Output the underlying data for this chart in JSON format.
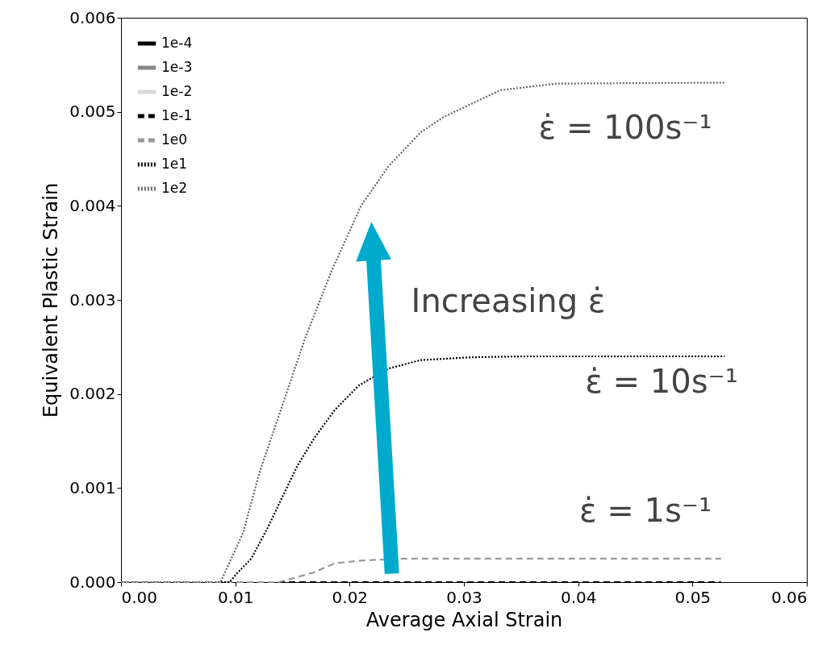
{
  "chart_data": {
    "type": "line",
    "xlabel": "Average Axial Strain",
    "ylabel": "Equivalent Plastic Strain",
    "xlim": [
      0,
      0.06
    ],
    "ylim": [
      0,
      0.006
    ],
    "xticks": [
      {
        "value": 0,
        "label": "0.00"
      },
      {
        "value": 0.01,
        "label": "0.01"
      },
      {
        "value": 0.02,
        "label": "0.02"
      },
      {
        "value": 0.03,
        "label": "0.03"
      },
      {
        "value": 0.04,
        "label": "0.04"
      },
      {
        "value": 0.05,
        "label": "0.05"
      },
      {
        "value": 0.06,
        "label": "0.06"
      }
    ],
    "yticks": [
      {
        "value": 0,
        "label": "0.000"
      },
      {
        "value": 0.001,
        "label": "0.001"
      },
      {
        "value": 0.002,
        "label": "0.002"
      },
      {
        "value": 0.003,
        "label": "0.003"
      },
      {
        "value": 0.004,
        "label": "0.004"
      },
      {
        "value": 0.005,
        "label": "0.005"
      },
      {
        "value": 0.006,
        "label": "0.006"
      }
    ],
    "grid": false,
    "legend": "top left",
    "marker": "none",
    "series": [
      {
        "name": "1e-4",
        "color": "#000000",
        "line_style": "solid"
      },
      {
        "name": "1e-3",
        "color": "#888888",
        "line_style": "solid"
      },
      {
        "name": "1e-2",
        "color": "#d9d9d9",
        "line_style": "solid"
      },
      {
        "name": "1e-1",
        "color": "#000000",
        "line_style": "dashed",
        "x": [
          0,
          0.0525
        ],
        "values": [
          0,
          0
        ]
      },
      {
        "name": "1e0",
        "color": "#999999",
        "line_style": "dashed",
        "x": [
          0,
          0.0138,
          0.0168,
          0.0187,
          0.0211,
          0.0248,
          0.03,
          0.0525
        ],
        "values": [
          0,
          0,
          0.0001,
          0.0002,
          0.00023,
          0.00025,
          0.00025,
          0.00025
        ]
      },
      {
        "name": "1e1",
        "color": "#000000",
        "line_style": "dotted",
        "x": [
          0,
          0.0095,
          0.0102,
          0.0114,
          0.0128,
          0.0141,
          0.0154,
          0.0169,
          0.0187,
          0.0208,
          0.0234,
          0.0262,
          0.0306,
          0.035,
          0.0528
        ],
        "values": [
          0,
          0,
          0.0001,
          0.00025,
          0.00057,
          0.0009,
          0.00123,
          0.00153,
          0.00183,
          0.00209,
          0.00227,
          0.00236,
          0.00239,
          0.0024,
          0.0024
        ]
      },
      {
        "name": "1e2",
        "color": "#666666",
        "line_style": "dotted",
        "x": [
          0,
          0.0087,
          0.0107,
          0.0121,
          0.0137,
          0.0161,
          0.0185,
          0.021,
          0.0234,
          0.0262,
          0.0283,
          0.0332,
          0.0381,
          0.0528
        ],
        "values": [
          0,
          0,
          0.00053,
          0.00116,
          0.00173,
          0.00259,
          0.00333,
          0.004,
          0.00442,
          0.00478,
          0.00495,
          0.00523,
          0.0053,
          0.00531
        ]
      }
    ],
    "annotations": [
      "ε̇ = 100s⁻¹",
      "ε̇ = 10s⁻¹",
      "ε̇ = 1s⁻¹",
      "Increasing ε̇"
    ]
  }
}
